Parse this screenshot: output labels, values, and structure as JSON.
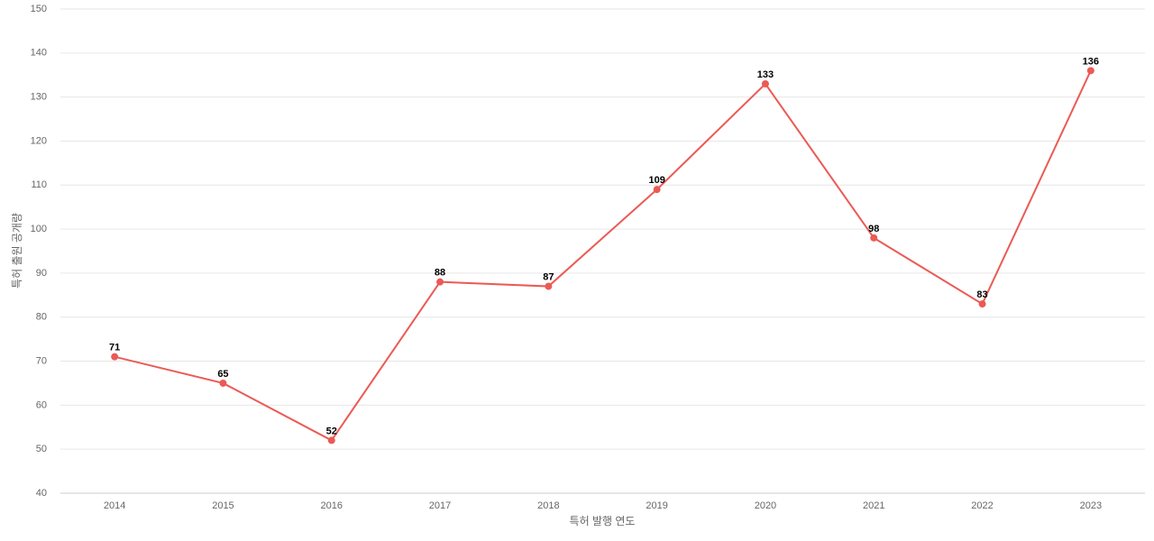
{
  "chart_data": {
    "type": "line",
    "categories": [
      "2014",
      "2015",
      "2016",
      "2017",
      "2018",
      "2019",
      "2020",
      "2021",
      "2022",
      "2023"
    ],
    "values": [
      71,
      65,
      52,
      88,
      87,
      109,
      133,
      98,
      83,
      136
    ],
    "color": "#eb5a55",
    "x_label": "특허 발행 연도",
    "y_label": "특허 출원 공개량",
    "ylim": [
      40,
      150
    ],
    "yticks": [
      40,
      50,
      60,
      70,
      80,
      90,
      100,
      110,
      120,
      130,
      140,
      150
    ],
    "grid": true
  }
}
